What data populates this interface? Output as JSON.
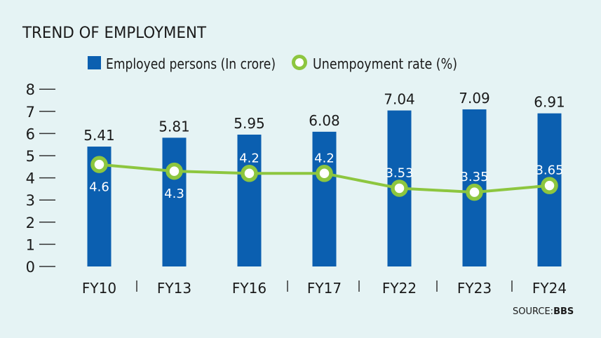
{
  "chart_data": {
    "type": "bar",
    "title": "TREND OF EMPLOYMENT",
    "categories": [
      "FY10",
      "FY13",
      "FY16",
      "FY17",
      "FY22",
      "FY23",
      "FY24"
    ],
    "series": [
      {
        "name": "Employed persons (In crore)",
        "type": "bar",
        "color": "#0b5fb0",
        "values": [
          5.41,
          5.81,
          5.95,
          6.08,
          7.04,
          7.09,
          6.91
        ],
        "labels": [
          "5.41",
          "5.81",
          "5.95",
          "6.08",
          "7.04",
          "7.09",
          "6.91"
        ]
      },
      {
        "name": "Unempoyment rate (%)",
        "type": "line",
        "color": "#8dc63f",
        "values": [
          4.6,
          4.3,
          4.2,
          4.2,
          3.53,
          3.35,
          3.65
        ],
        "labels": [
          "4.6",
          "4.3",
          "4.2",
          "4.2",
          "3.53",
          "3.35",
          "3.65"
        ]
      }
    ],
    "yticks": [
      "0",
      "1",
      "2",
      "3",
      "4",
      "5",
      "6",
      "7",
      "8"
    ],
    "ylim": [
      0,
      8
    ],
    "grid": false,
    "legend": "top",
    "source_label": "SOURCE:",
    "source_name": "BBS"
  }
}
